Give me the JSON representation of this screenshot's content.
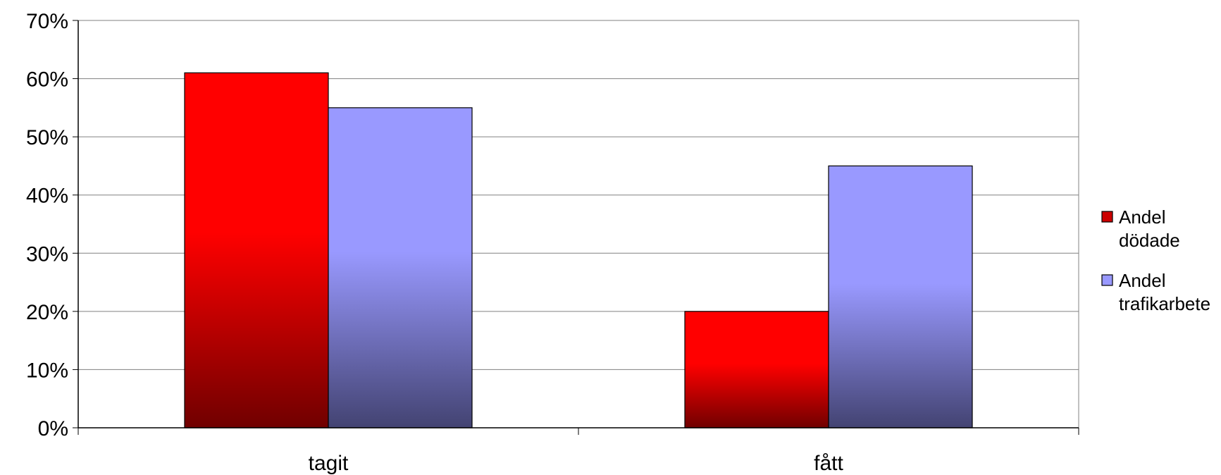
{
  "chart_data": {
    "type": "bar",
    "categories": [
      "tagit",
      "fått"
    ],
    "series": [
      {
        "name": "Andel dödade",
        "legend_lines": [
          "Andel",
          "dödade"
        ],
        "values": [
          61,
          20
        ],
        "color_top": "#ff0000",
        "color_bottom": "#700000",
        "legend_color": "#cc0000"
      },
      {
        "name": "Andel trafikarbete",
        "legend_lines": [
          "Andel",
          "trafikarbete"
        ],
        "values": [
          55,
          45
        ],
        "color_top": "#9999ff",
        "color_bottom": "#434372",
        "legend_color": "#9999ff"
      }
    ],
    "ylim": [
      0,
      70
    ],
    "yticks": [
      0,
      10,
      20,
      30,
      40,
      50,
      60,
      70
    ],
    "ytick_labels": [
      "0%",
      "10%",
      "20%",
      "30%",
      "40%",
      "50%",
      "60%",
      "70%"
    ],
    "title": "",
    "xlabel": "",
    "ylabel": "",
    "grid": true,
    "legend_position": "right"
  }
}
